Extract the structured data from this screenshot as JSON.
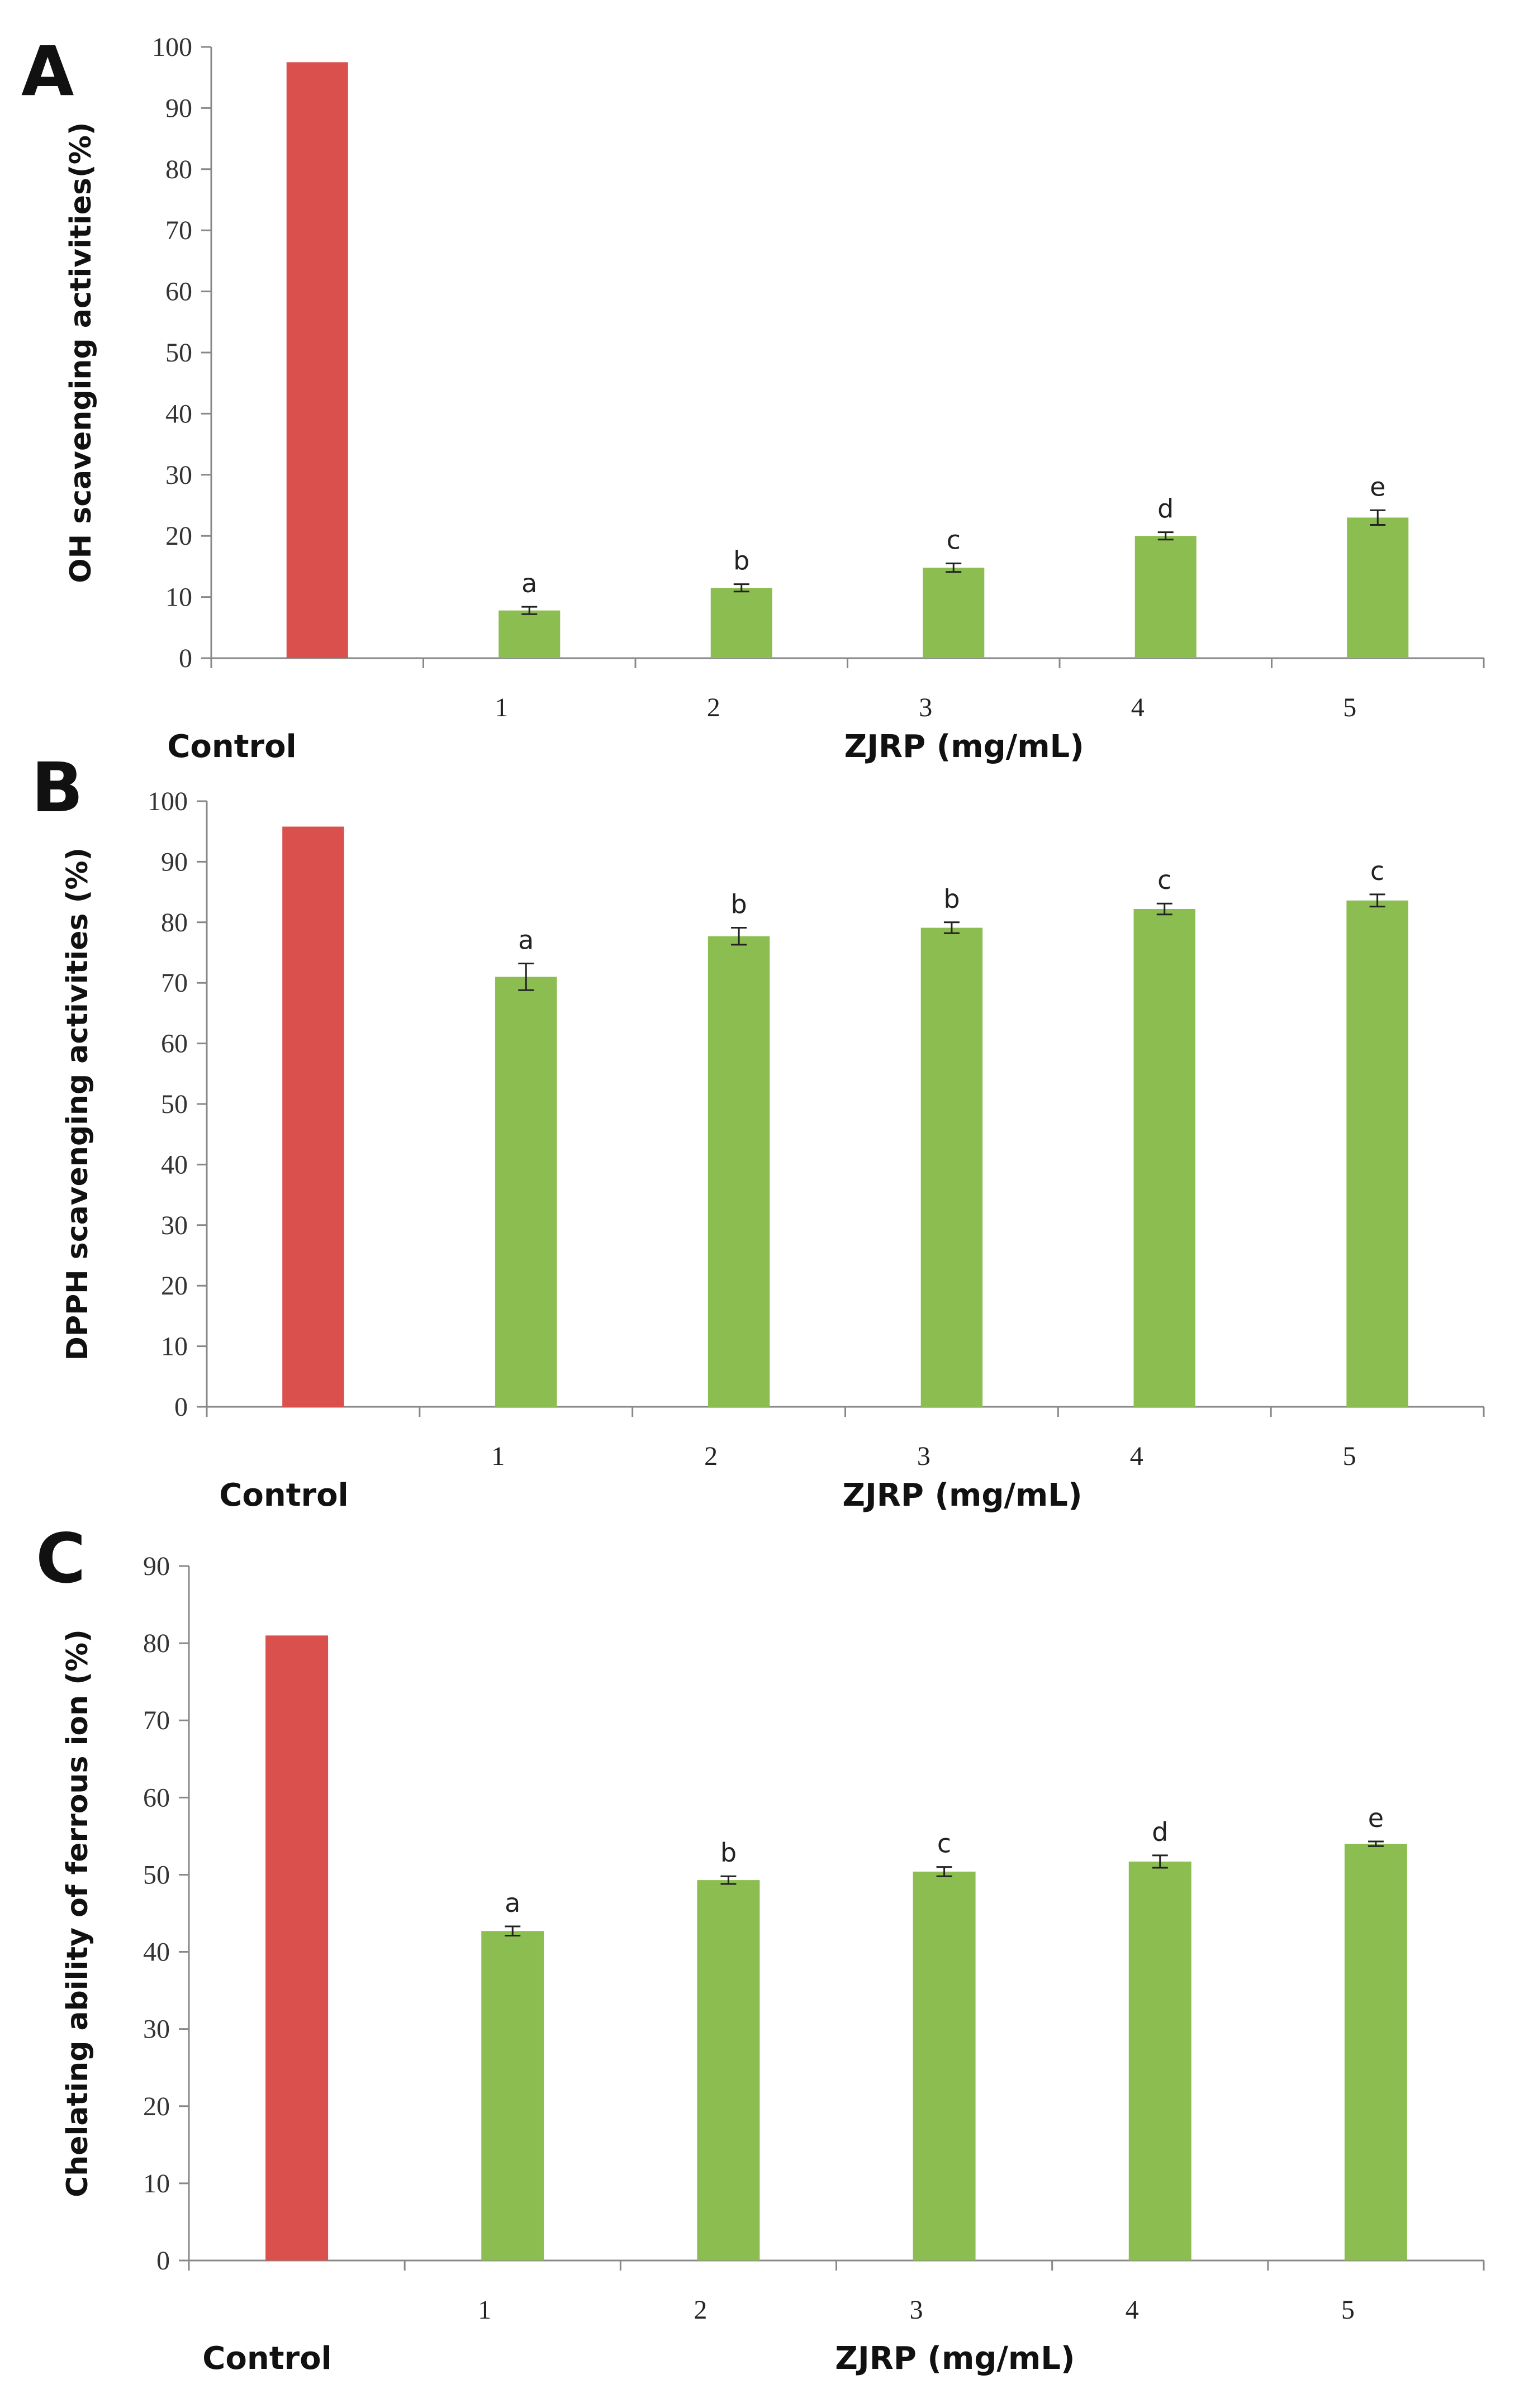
{
  "figure": {
    "bar_colors": {
      "control": "#d9504d",
      "sample": "#8cbd50"
    },
    "axis_color": "#888888"
  },
  "chart_data": [
    {
      "type": "bar",
      "panel": "A",
      "ylabel": "OH scavenging activities(%)",
      "xlabel": "ZJRP (mg/mL)",
      "control_label": "Control",
      "categories": [
        "Control",
        "1",
        "2",
        "3",
        "4",
        "5"
      ],
      "values": [
        97.5,
        7.8,
        11.5,
        14.8,
        20.0,
        23.0
      ],
      "errors": [
        0,
        0.6,
        0.6,
        0.7,
        0.6,
        1.2
      ],
      "significance": [
        "",
        "a",
        "b",
        "c",
        "d",
        "e"
      ],
      "ylim": [
        0,
        100
      ],
      "yticks": [
        0,
        10,
        20,
        30,
        40,
        50,
        60,
        70,
        80,
        90,
        100
      ]
    },
    {
      "type": "bar",
      "panel": "B",
      "ylabel": "DPPH scavenging activities (%)",
      "xlabel": "ZJRP (mg/mL)",
      "control_label": "Control",
      "categories": [
        "Control",
        "1",
        "2",
        "3",
        "4",
        "5"
      ],
      "values": [
        95.8,
        71.0,
        77.7,
        79.1,
        82.2,
        83.6
      ],
      "errors": [
        0,
        2.2,
        1.4,
        0.9,
        0.9,
        1.0
      ],
      "significance": [
        "",
        "a",
        "b",
        "b",
        "c",
        "c"
      ],
      "ylim": [
        0,
        100
      ],
      "yticks": [
        0,
        10,
        20,
        30,
        40,
        50,
        60,
        70,
        80,
        90,
        100
      ]
    },
    {
      "type": "bar",
      "panel": "C",
      "ylabel": "Chelating ability of ferrous ion (%)",
      "xlabel": "ZJRP (mg/mL)",
      "control_label": "Control",
      "categories": [
        "Control",
        "1",
        "2",
        "3",
        "4",
        "5"
      ],
      "values": [
        81.0,
        42.7,
        49.3,
        50.4,
        51.7,
        54.0
      ],
      "errors": [
        0,
        0.6,
        0.5,
        0.6,
        0.8,
        0.3
      ],
      "significance": [
        "",
        "a",
        "b",
        "c",
        "d",
        "e"
      ],
      "ylim": [
        0,
        90
      ],
      "yticks": [
        0,
        10,
        20,
        30,
        40,
        50,
        60,
        70,
        80,
        90
      ]
    }
  ]
}
